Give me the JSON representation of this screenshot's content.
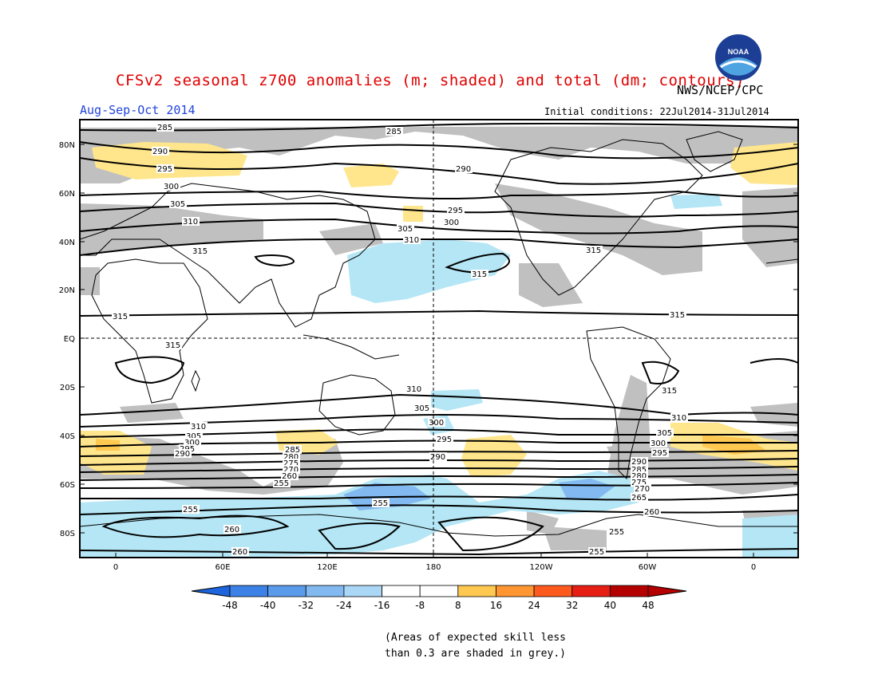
{
  "title": "CFSv2 seasonal z700 anomalies (m; shaded) and total (dm; contours)",
  "organization": "NWS/NCEP/CPC",
  "logo_text": "NOAA",
  "period": "Aug-Sep-Oct 2014",
  "initial_conditions": "Initial conditions: 22Jul2014-31Jul2014",
  "lat_ticks": [
    "80N",
    "60N",
    "40N",
    "20N",
    "EQ",
    "20S",
    "40S",
    "60S",
    "80S"
  ],
  "lon_ticks": [
    "0",
    "60E",
    "120E",
    "180",
    "120W",
    "60W",
    "0"
  ],
  "colorbar": {
    "labels": [
      "-48",
      "-40",
      "-32",
      "-24",
      "-16",
      "-8",
      "8",
      "16",
      "24",
      "32",
      "40",
      "48"
    ],
    "colors": [
      "#1e64dc",
      "#3c82e6",
      "#5a9bec",
      "#82b9f0",
      "#aad7f5",
      "#ffffff",
      "#ffe68c",
      "#ffc850",
      "#ff9632",
      "#ff5a1e",
      "#e61e14",
      "#b40000"
    ]
  },
  "note_line1": "(Areas of expected skill less",
  "note_line2": "than 0.3 are shaded in grey.)",
  "colors": {
    "title": "#e00000",
    "period": "#2244dd",
    "skill_grey": "#c0c0c0",
    "negative_anomaly": "#b4e6f5",
    "positive_anomaly": "#ffe68c"
  },
  "contours": [
    {
      "label": "285",
      "lat": 84
    },
    {
      "label": "290",
      "lat": 77
    },
    {
      "label": "295",
      "lat": 70
    },
    {
      "label": "300",
      "lat": 62
    },
    {
      "label": "305",
      "lat": 54
    },
    {
      "label": "310",
      "lat": 44
    },
    {
      "label": "315",
      "lat": 36
    },
    {
      "label": "315",
      "lat": 9
    },
    {
      "label": "310",
      "lat": -30
    },
    {
      "label": "305",
      "lat": -38
    },
    {
      "label": "300",
      "lat": -42
    },
    {
      "label": "295",
      "lat": -46
    },
    {
      "label": "290",
      "lat": -50
    },
    {
      "label": "285",
      "lat": -53
    },
    {
      "label": "280",
      "lat": -56
    },
    {
      "label": "275",
      "lat": -59
    },
    {
      "label": "270",
      "lat": -62
    },
    {
      "label": "265",
      "lat": -65
    },
    {
      "label": "260",
      "lat": -70
    },
    {
      "label": "255",
      "lat": -75
    }
  ]
}
